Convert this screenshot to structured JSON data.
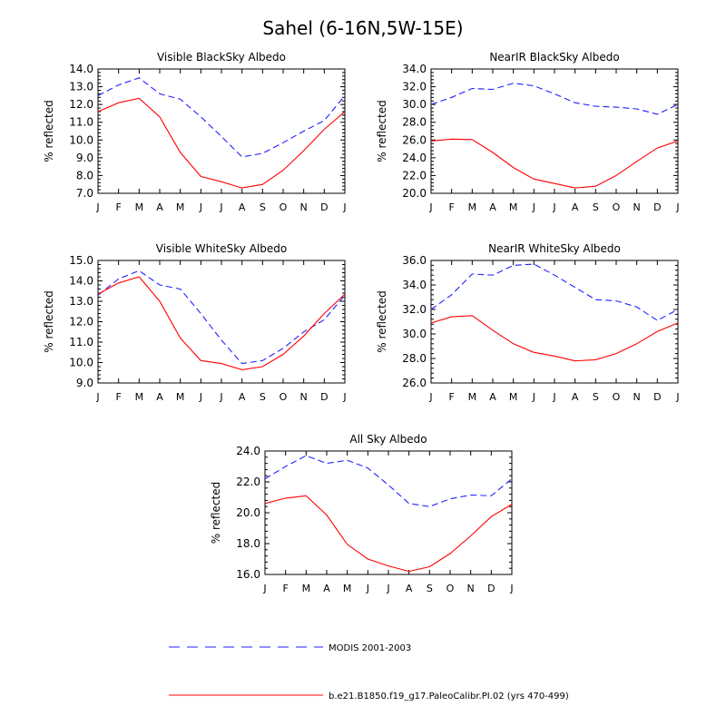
{
  "page_title": "Sahel (6-16N,5W-15E)",
  "legend": [
    {
      "label": "MODIS 2001-2003",
      "color": "#2020ff",
      "dashed": true
    },
    {
      "label": "b.e21.B1850.f19_g17.PaleoCalibr.PI.02 (yrs 470-499)",
      "color": "#ff0000",
      "dashed": false
    }
  ],
  "chart_data": [
    {
      "type": "line",
      "title": "Visible BlackSky Albedo",
      "ylabel": "% reflected",
      "categories": [
        "J",
        "F",
        "M",
        "A",
        "M",
        "J",
        "J",
        "A",
        "S",
        "O",
        "N",
        "D",
        "J"
      ],
      "ylim": [
        7.0,
        14.0
      ],
      "yticks": [
        "7.0",
        "8.0",
        "9.0",
        "10.0",
        "11.0",
        "12.0",
        "13.0",
        "14.0"
      ],
      "series": [
        {
          "name": "MODIS 2001-2003",
          "values": [
            12.5,
            13.1,
            13.5,
            12.6,
            12.3,
            11.3,
            10.2,
            9.05,
            9.25,
            9.85,
            10.5,
            11.1,
            12.5
          ]
        },
        {
          "name": "b.e21.B1850.f19_g17.PaleoCalibr.PI.02 (yrs 470-499)",
          "values": [
            11.6,
            12.1,
            12.35,
            11.3,
            9.3,
            7.95,
            7.65,
            7.3,
            7.5,
            8.3,
            9.4,
            10.6,
            11.6
          ]
        }
      ]
    },
    {
      "type": "line",
      "title": "NearIR BlackSky Albedo",
      "ylabel": "% reflected",
      "categories": [
        "J",
        "F",
        "M",
        "A",
        "M",
        "J",
        "J",
        "A",
        "S",
        "O",
        "N",
        "D",
        "J"
      ],
      "ylim": [
        20.0,
        34.0
      ],
      "yticks": [
        "20.0",
        "22.0",
        "24.0",
        "26.0",
        "28.0",
        "30.0",
        "32.0",
        "34.0"
      ],
      "series": [
        {
          "name": "MODIS 2001-2003",
          "values": [
            30.0,
            30.8,
            31.8,
            31.7,
            32.4,
            32.1,
            31.2,
            30.2,
            29.8,
            29.7,
            29.5,
            28.9,
            30.0
          ]
        },
        {
          "name": "b.e21.B1850.f19_g17.PaleoCalibr.PI.02 (yrs 470-499)",
          "values": [
            25.9,
            26.1,
            26.05,
            24.6,
            22.9,
            21.6,
            21.1,
            20.6,
            20.8,
            22.0,
            23.6,
            25.1,
            25.9
          ]
        }
      ]
    },
    {
      "type": "line",
      "title": "Visible WhiteSky Albedo",
      "ylabel": "% reflected",
      "categories": [
        "J",
        "F",
        "M",
        "A",
        "M",
        "J",
        "J",
        "A",
        "S",
        "O",
        "N",
        "D",
        "J"
      ],
      "ylim": [
        9.0,
        15.0
      ],
      "yticks": [
        "9.0",
        "10.0",
        "11.0",
        "12.0",
        "13.0",
        "14.0",
        "15.0"
      ],
      "series": [
        {
          "name": "MODIS 2001-2003",
          "values": [
            13.3,
            14.1,
            14.5,
            13.8,
            13.6,
            12.4,
            11.1,
            9.95,
            10.1,
            10.7,
            11.5,
            12.1,
            13.3
          ]
        },
        {
          "name": "b.e21.B1850.f19_g17.PaleoCalibr.PI.02 (yrs 470-499)",
          "values": [
            13.35,
            13.9,
            14.2,
            13.0,
            11.2,
            10.1,
            9.95,
            9.65,
            9.8,
            10.4,
            11.3,
            12.4,
            13.35
          ]
        }
      ]
    },
    {
      "type": "line",
      "title": "NearIR WhiteSky Albedo",
      "ylabel": "% reflected",
      "categories": [
        "J",
        "F",
        "M",
        "A",
        "M",
        "J",
        "J",
        "A",
        "S",
        "O",
        "N",
        "D",
        "J"
      ],
      "ylim": [
        26.0,
        36.0
      ],
      "yticks": [
        "26.0",
        "28.0",
        "30.0",
        "32.0",
        "34.0",
        "36.0"
      ],
      "series": [
        {
          "name": "MODIS 2001-2003",
          "values": [
            32.0,
            33.2,
            34.9,
            34.8,
            35.6,
            35.7,
            34.8,
            33.8,
            32.8,
            32.7,
            32.2,
            31.1,
            32.0
          ]
        },
        {
          "name": "b.e21.B1850.f19_g17.PaleoCalibr.PI.02 (yrs 470-499)",
          "values": [
            30.9,
            31.4,
            31.5,
            30.3,
            29.2,
            28.5,
            28.2,
            27.8,
            27.9,
            28.4,
            29.2,
            30.2,
            30.9
          ]
        }
      ]
    },
    {
      "type": "line",
      "title": "All Sky Albedo",
      "ylabel": "% reflected",
      "categories": [
        "J",
        "F",
        "M",
        "A",
        "M",
        "J",
        "J",
        "A",
        "S",
        "O",
        "N",
        "D",
        "J"
      ],
      "ylim": [
        16.0,
        24.0
      ],
      "yticks": [
        "16.0",
        "18.0",
        "20.0",
        "22.0",
        "24.0"
      ],
      "series": [
        {
          "name": "MODIS 2001-2003",
          "values": [
            22.2,
            23.0,
            23.7,
            23.2,
            23.4,
            22.9,
            21.8,
            20.6,
            20.4,
            20.9,
            21.15,
            21.1,
            22.2
          ]
        },
        {
          "name": "b.e21.B1850.f19_g17.PaleoCalibr.PI.02 (yrs 470-499)",
          "values": [
            20.6,
            20.95,
            21.1,
            19.85,
            17.95,
            17.0,
            16.55,
            16.2,
            16.5,
            17.35,
            18.5,
            19.75,
            20.55
          ]
        }
      ]
    }
  ]
}
